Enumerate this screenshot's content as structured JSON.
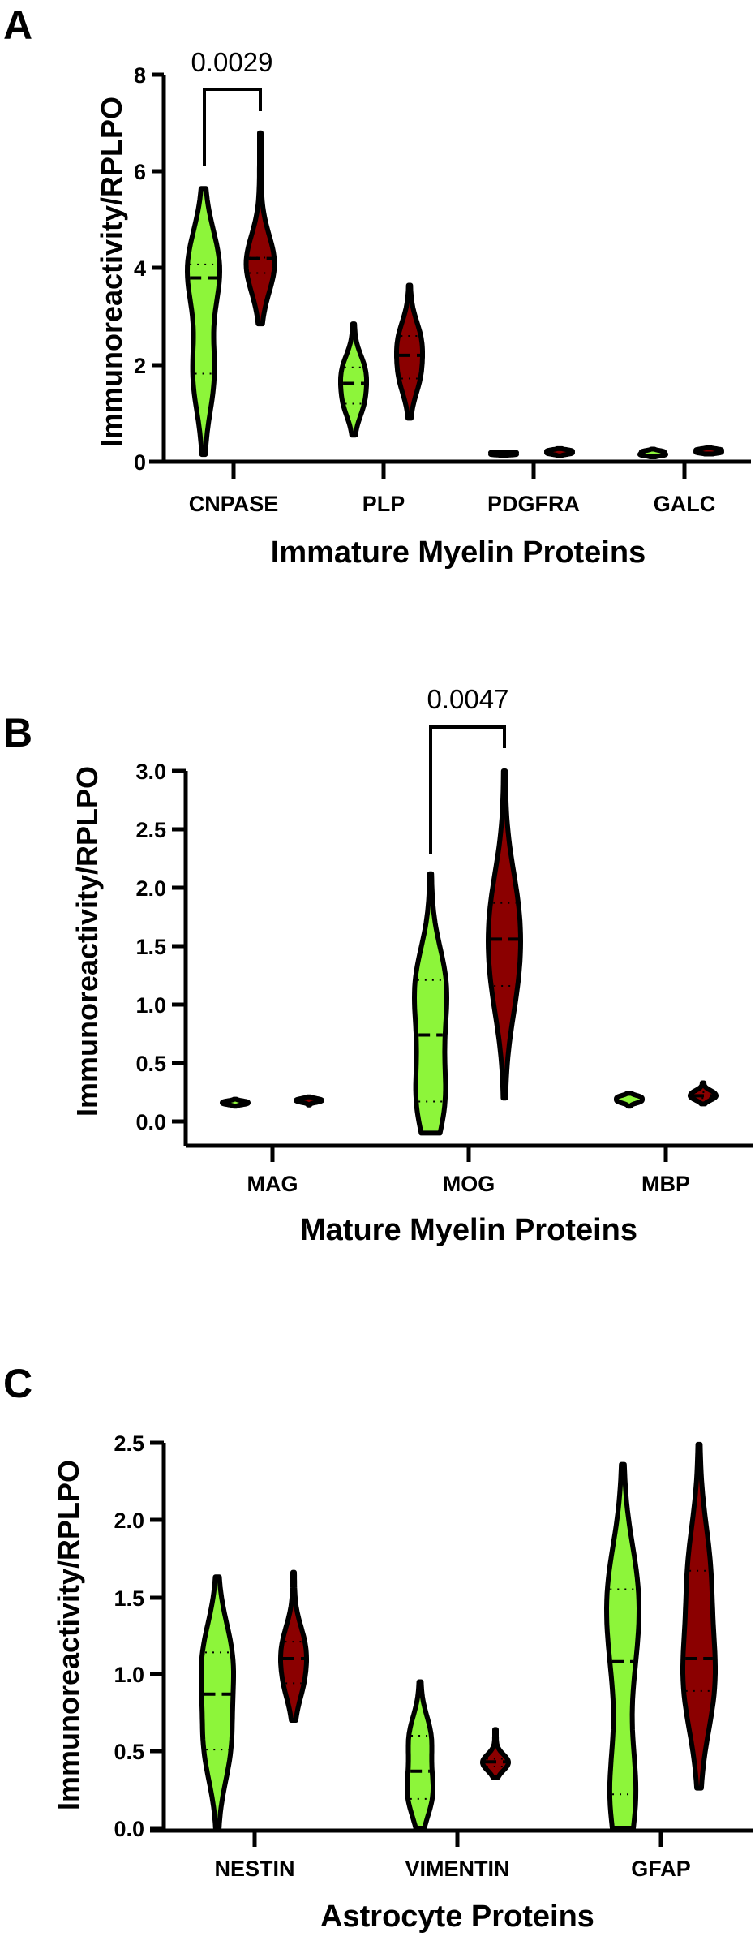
{
  "figure": {
    "colors": {
      "group1": "#8DF53A",
      "group2": "#8B0000",
      "outline": "#000000"
    }
  },
  "chart_data": [
    {
      "type": "violin",
      "panel": "A",
      "title": "",
      "xlabel": "Immature Myelin Proteins",
      "ylabel": "Immunoreactivity/RPLPO",
      "ylim": [
        0,
        8
      ],
      "yticks": [
        "0",
        "2",
        "4",
        "6",
        "8"
      ],
      "categories": [
        "CNPASE",
        "PLP",
        "PDGFRA",
        "GALC"
      ],
      "series": [
        {
          "name": "Group 1 (green)",
          "color": "#8DF53A",
          "median": [
            3.8,
            1.62,
            0.17,
            0.17
          ],
          "q1": [
            1.82,
            1.2,
            0.15,
            0.14
          ],
          "q3": [
            4.08,
            1.95,
            0.19,
            0.21
          ],
          "min": [
            0.15,
            0.55,
            0.13,
            0.1
          ],
          "max": [
            5.65,
            2.85,
            0.2,
            0.26
          ]
        },
        {
          "name": "Group 2 (dark red)",
          "color": "#8B0000",
          "median": [
            4.2,
            2.2,
            0.2,
            0.22
          ],
          "q1": [
            3.9,
            1.72,
            0.17,
            0.19
          ],
          "q3": [
            4.22,
            2.6,
            0.23,
            0.25
          ],
          "min": [
            2.85,
            0.9,
            0.12,
            0.16
          ],
          "max": [
            6.8,
            3.65,
            0.27,
            0.3
          ]
        }
      ],
      "annotations": [
        {
          "type": "bracket",
          "between": [
            "CNPASE-1",
            "CNPASE-2"
          ],
          "text": "0.0029"
        }
      ]
    },
    {
      "type": "violin",
      "panel": "B",
      "title": "",
      "xlabel": "Mature Myelin Proteins",
      "ylabel": "Immunoreactivity/RPLPO",
      "ylim": [
        0,
        3.0
      ],
      "yticks": [
        "0.0",
        "0.5",
        "1.0",
        "1.5",
        "2.0",
        "2.5",
        "3.0"
      ],
      "categories": [
        "MAG",
        "MOG",
        "MBP"
      ],
      "series": [
        {
          "name": "Group 1 (green)",
          "color": "#8DF53A",
          "median": [
            0.16,
            0.74,
            0.19
          ],
          "q1": [
            0.15,
            0.17,
            0.17
          ],
          "q3": [
            0.17,
            1.21,
            0.21
          ],
          "min": [
            0.13,
            -0.1,
            0.13
          ],
          "max": [
            0.19,
            2.12,
            0.24
          ]
        },
        {
          "name": "Group 2 (dark red)",
          "color": "#8B0000",
          "median": [
            0.18,
            1.56,
            0.22
          ],
          "q1": [
            0.17,
            1.16,
            0.2
          ],
          "q3": [
            0.19,
            1.87,
            0.25
          ],
          "min": [
            0.14,
            0.2,
            0.15
          ],
          "max": [
            0.21,
            3.0,
            0.33
          ]
        }
      ],
      "annotations": [
        {
          "type": "bracket",
          "between": [
            "MOG-1",
            "MOG-2"
          ],
          "text": "0.0047"
        }
      ]
    },
    {
      "type": "violin",
      "panel": "C",
      "title": "",
      "xlabel": "Astrocyte Proteins",
      "ylabel": "Immunoreactivity/RPLPO",
      "ylim": [
        0,
        2.5
      ],
      "yticks": [
        "0.0",
        "0.5",
        "1.0",
        "1.5",
        "2.0",
        "2.5"
      ],
      "categories": [
        "NESTIN",
        "VIMENTIN",
        "GFAP"
      ],
      "series": [
        {
          "name": "Group 1 (green)",
          "color": "#8DF53A",
          "median": [
            0.87,
            0.37,
            1.08
          ],
          "q1": [
            0.51,
            0.19,
            0.22
          ],
          "q3": [
            1.14,
            0.6,
            1.55
          ],
          "min": [
            0.0,
            0.0,
            0.0
          ],
          "max": [
            1.63,
            0.95,
            2.36
          ]
        },
        {
          "name": "Group 2 (dark red)",
          "color": "#8B0000",
          "median": [
            1.1,
            0.43,
            1.1
          ],
          "q1": [
            0.94,
            0.4,
            0.89
          ],
          "q3": [
            1.21,
            0.45,
            1.67
          ],
          "min": [
            0.7,
            0.33,
            0.26
          ],
          "max": [
            1.66,
            0.64,
            2.49
          ]
        }
      ],
      "annotations": []
    }
  ],
  "panels": {
    "A": {
      "letter": "A",
      "ylabel": "Immunoreactivity/RPLPO",
      "xlabel": "Immature Myelin Proteins",
      "pvalue": "0.0029",
      "ticks": [
        "0",
        "2",
        "4",
        "6",
        "8"
      ],
      "cats": [
        "CNPASE",
        "PLP",
        "PDGFRA",
        "GALC"
      ]
    },
    "B": {
      "letter": "B",
      "ylabel": "Immunoreactivity/RPLPO",
      "xlabel": "Mature Myelin Proteins",
      "pvalue": "0.0047",
      "ticks": [
        "0.0",
        "0.5",
        "1.0",
        "1.5",
        "2.0",
        "2.5",
        "3.0"
      ],
      "cats": [
        "MAG",
        "MOG",
        "MBP"
      ]
    },
    "C": {
      "letter": "C",
      "ylabel": "Immunoreactivity/RPLPO",
      "xlabel": "Astrocyte Proteins",
      "ticks": [
        "0.0",
        "0.5",
        "1.0",
        "1.5",
        "2.0",
        "2.5"
      ],
      "cats": [
        "NESTIN",
        "VIMENTIN",
        "GFAP"
      ]
    }
  }
}
